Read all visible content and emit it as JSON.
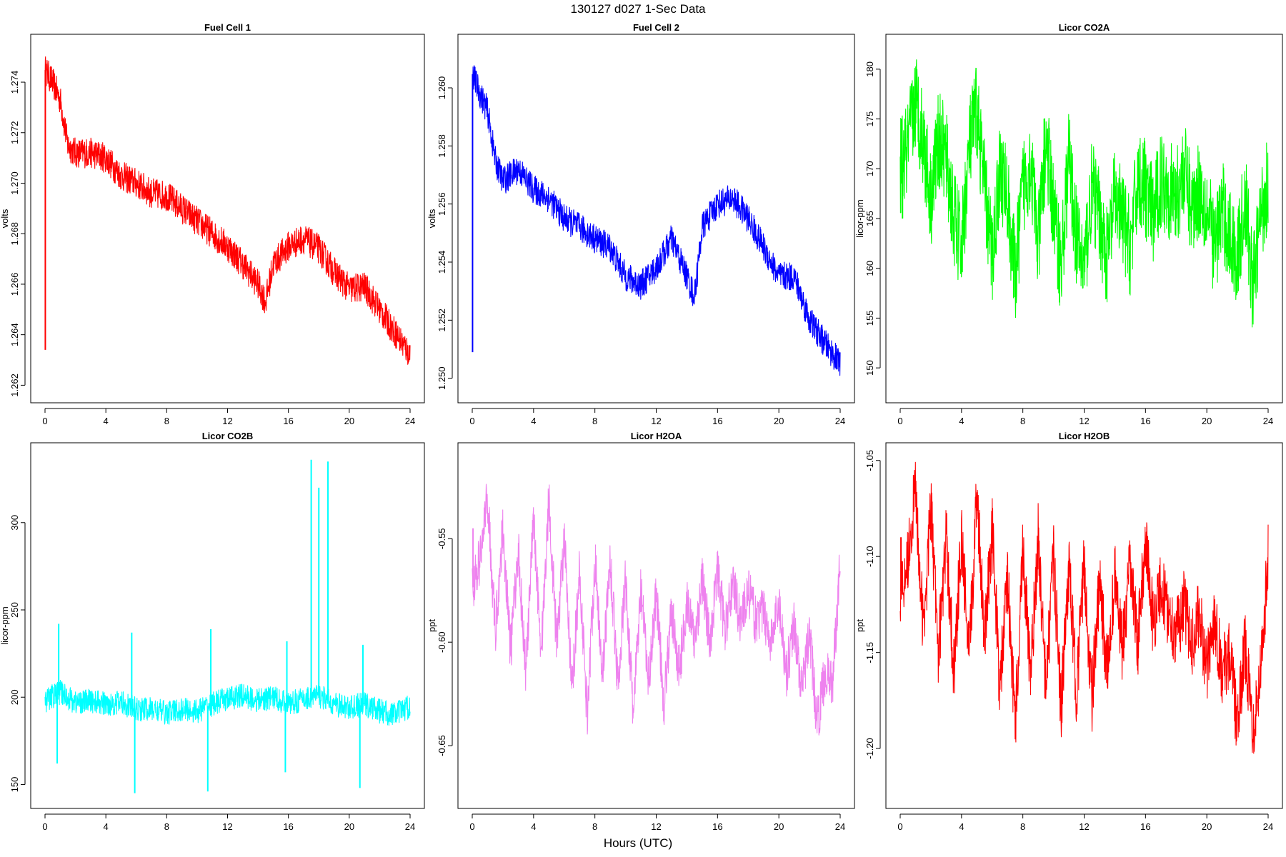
{
  "figure": {
    "title": "130127   d027   1-Sec Data",
    "xlabel": "Hours (UTC)"
  },
  "chart_data": [
    {
      "type": "line",
      "title": "Fuel Cell 1",
      "ylabel": "volts",
      "color": "#ff0000",
      "xlim": [
        0,
        24
      ],
      "ylim": [
        1.2617,
        1.2755
      ],
      "xticks": [
        0,
        4,
        8,
        12,
        16,
        20,
        24
      ],
      "xtick_labels": [
        "0",
        "4",
        "8",
        "12",
        "16",
        "20",
        "24"
      ],
      "yticks": [
        1.262,
        1.264,
        1.266,
        1.268,
        1.27,
        1.272,
        1.274
      ],
      "ytick_labels": [
        "1.262",
        "1.264",
        "1.266",
        "1.268",
        "1.270",
        "1.272",
        "1.274"
      ],
      "x": [
        0,
        0.5,
        1,
        1.5,
        2,
        3,
        4,
        5,
        6,
        7,
        8,
        9,
        10,
        11,
        12,
        13,
        14,
        14.5,
        15,
        16,
        17,
        18,
        19,
        20,
        21,
        22,
        23,
        24
      ],
      "y": [
        1.2745,
        1.274,
        1.2733,
        1.2715,
        1.2712,
        1.2712,
        1.271,
        1.2703,
        1.27,
        1.2696,
        1.2695,
        1.269,
        1.2685,
        1.268,
        1.2675,
        1.2668,
        1.266,
        1.2653,
        1.2668,
        1.2675,
        1.2678,
        1.2674,
        1.2665,
        1.2658,
        1.2659,
        1.265,
        1.2641,
        1.2632
      ],
      "noise": 0.0006,
      "spikes": [
        {
          "x": 0.02,
          "y": 1.2634
        }
      ]
    },
    {
      "type": "line",
      "title": "Fuel Cell 2",
      "ylabel": "volts",
      "color": "#0000ff",
      "xlim": [
        0,
        24
      ],
      "ylim": [
        1.2495,
        1.2615
      ],
      "xticks": [
        0,
        4,
        8,
        12,
        16,
        20,
        24
      ],
      "xtick_labels": [
        "0",
        "4",
        "8",
        "12",
        "16",
        "20",
        "24"
      ],
      "yticks": [
        1.25,
        1.252,
        1.254,
        1.256,
        1.258,
        1.26
      ],
      "ytick_labels": [
        "1.250",
        "1.252",
        "1.254",
        "1.256",
        "1.258",
        "1.260"
      ],
      "x": [
        0,
        0.5,
        1,
        1.5,
        2,
        3,
        4,
        5,
        6,
        7,
        8,
        9,
        10,
        11,
        12,
        13,
        14,
        14.5,
        15,
        16,
        17,
        18,
        19,
        20,
        21,
        22,
        23,
        24
      ],
      "y": [
        1.2605,
        1.2598,
        1.2592,
        1.2575,
        1.2568,
        1.2572,
        1.2565,
        1.2562,
        1.2555,
        1.2552,
        1.2548,
        1.2545,
        1.2535,
        1.2532,
        1.2538,
        1.2548,
        1.2535,
        1.2528,
        1.2552,
        1.256,
        1.2562,
        1.2555,
        1.2545,
        1.2535,
        1.2535,
        1.252,
        1.2512,
        1.2505
      ],
      "noise": 0.0005,
      "spikes": [
        {
          "x": 0.02,
          "y": 1.2509
        }
      ]
    },
    {
      "type": "line",
      "title": "Licor CO2A",
      "ylabel": "licor-ppm",
      "color": "#00ff00",
      "xlim": [
        0,
        24
      ],
      "ylim": [
        147.5,
        182.5
      ],
      "xticks": [
        0,
        4,
        8,
        12,
        16,
        20,
        24
      ],
      "xtick_labels": [
        "0",
        "4",
        "8",
        "12",
        "16",
        "20",
        "24"
      ],
      "yticks": [
        150,
        155,
        160,
        165,
        170,
        175,
        180
      ],
      "ytick_labels": [
        "150",
        "155",
        "160",
        "165",
        "170",
        "175",
        "180"
      ],
      "x": [
        0,
        0.5,
        1,
        1.5,
        2,
        2.5,
        3,
        3.5,
        4,
        4.5,
        5,
        5.5,
        6,
        6.5,
        7,
        7.5,
        8,
        8.5,
        9,
        9.5,
        10,
        10.5,
        11,
        11.5,
        12,
        12.5,
        13,
        13.5,
        14,
        14.5,
        15,
        15.5,
        16,
        16.5,
        17,
        17.5,
        18,
        18.5,
        19,
        19.5,
        20,
        20.5,
        21,
        21.5,
        22,
        22.5,
        23,
        23.5,
        24
      ],
      "y": [
        170,
        172,
        177,
        173,
        167,
        173,
        171,
        165,
        162,
        172,
        176,
        168,
        161,
        170,
        167,
        159,
        168,
        171,
        162,
        173,
        166,
        160,
        171,
        163,
        160,
        168,
        165,
        161,
        167,
        165,
        162,
        169,
        168,
        165,
        169,
        168,
        167,
        170,
        166,
        168,
        166,
        162,
        166,
        163,
        161,
        167,
        158,
        165,
        169
      ],
      "noise": 5,
      "spikes": [
        {
          "x": 0.15,
          "y": 165
        }
      ]
    },
    {
      "type": "line",
      "title": "Licor CO2B",
      "ylabel": "licor-ppm",
      "color": "#00ffff",
      "xlim": [
        0,
        24
      ],
      "ylim": [
        142,
        340
      ],
      "xticks": [
        0,
        4,
        8,
        12,
        16,
        20,
        24
      ],
      "xtick_labels": [
        "0",
        "4",
        "8",
        "12",
        "16",
        "20",
        "24"
      ],
      "yticks": [
        150,
        200,
        250,
        300
      ],
      "ytick_labels": [
        "150",
        "200",
        "250",
        "300"
      ],
      "x": [
        0,
        1,
        2,
        3,
        4,
        5,
        6,
        7,
        8,
        9,
        10,
        11,
        12,
        13,
        14,
        15,
        16,
        17,
        18,
        19,
        20,
        21,
        22,
        23,
        24
      ],
      "y": [
        198,
        203,
        197,
        198,
        196,
        197,
        193,
        193,
        191,
        193,
        192,
        196,
        199,
        201,
        198,
        200,
        196,
        199,
        201,
        196,
        194,
        196,
        192,
        190,
        195
      ],
      "noise": 7,
      "spikes": [
        {
          "x": 0.8,
          "y": 162
        },
        {
          "x": 0.9,
          "y": 242
        },
        {
          "x": 5.7,
          "y": 237
        },
        {
          "x": 5.9,
          "y": 145
        },
        {
          "x": 10.7,
          "y": 146
        },
        {
          "x": 10.9,
          "y": 239
        },
        {
          "x": 15.8,
          "y": 157
        },
        {
          "x": 15.9,
          "y": 232
        },
        {
          "x": 17.5,
          "y": 336
        },
        {
          "x": 18.0,
          "y": 320
        },
        {
          "x": 18.6,
          "y": 335
        },
        {
          "x": 20.7,
          "y": 148
        },
        {
          "x": 20.9,
          "y": 230
        }
      ]
    },
    {
      "type": "line",
      "title": "Licor H2OA",
      "ylabel": "ppt",
      "color": "#ee82ee",
      "xlim": [
        0,
        24
      ],
      "ylim": [
        -0.6755,
        -0.5085
      ],
      "xticks": [
        0,
        4,
        8,
        12,
        16,
        20,
        24
      ],
      "xtick_labels": [
        "0",
        "4",
        "8",
        "12",
        "16",
        "20",
        "24"
      ],
      "yticks": [
        -0.65,
        -0.6,
        -0.55
      ],
      "ytick_labels": [
        "-0.65",
        "-0.60",
        "-0.55"
      ],
      "x": [
        0,
        0.5,
        1,
        1.5,
        2,
        2.5,
        3,
        3.5,
        4,
        4.5,
        5,
        5.5,
        6,
        6.5,
        7,
        7.5,
        8,
        8.5,
        9,
        9.5,
        10,
        10.5,
        11,
        11.5,
        12,
        12.5,
        13,
        13.5,
        14,
        14.5,
        15,
        15.5,
        16,
        16.5,
        17,
        17.5,
        18,
        18.5,
        19,
        19.5,
        20,
        20.5,
        21,
        21.5,
        22,
        22.5,
        23,
        23.5,
        24
      ],
      "y": [
        -0.575,
        -0.56,
        -0.53,
        -0.595,
        -0.545,
        -0.605,
        -0.555,
        -0.615,
        -0.54,
        -0.605,
        -0.53,
        -0.6,
        -0.55,
        -0.625,
        -0.565,
        -0.635,
        -0.56,
        -0.615,
        -0.56,
        -0.62,
        -0.57,
        -0.635,
        -0.575,
        -0.62,
        -0.575,
        -0.63,
        -0.585,
        -0.615,
        -0.58,
        -0.6,
        -0.57,
        -0.6,
        -0.565,
        -0.595,
        -0.57,
        -0.59,
        -0.575,
        -0.59,
        -0.585,
        -0.6,
        -0.58,
        -0.615,
        -0.59,
        -0.625,
        -0.595,
        -0.64,
        -0.615,
        -0.62,
        -0.56
      ],
      "noise": 0.012,
      "spikes": [
        {
          "x": 0.05,
          "y": -0.545
        }
      ]
    },
    {
      "type": "line",
      "title": "Licor H2OB",
      "ylabel": "ppt",
      "color": "#ff0000",
      "xlim": [
        0,
        24
      ],
      "ylim": [
        -1.226,
        -1.046
      ],
      "xticks": [
        0,
        4,
        8,
        12,
        16,
        20,
        24
      ],
      "xtick_labels": [
        "0",
        "4",
        "8",
        "12",
        "16",
        "20",
        "24"
      ],
      "yticks": [
        -1.2,
        -1.15,
        -1.1,
        -1.05
      ],
      "ytick_labels": [
        "-1.20",
        "-1.15",
        "-1.10",
        "-1.05"
      ],
      "x": [
        0,
        0.5,
        1,
        1.5,
        2,
        2.5,
        3,
        3.5,
        4,
        4.5,
        5,
        5.5,
        6,
        6.5,
        7,
        7.5,
        8,
        8.5,
        9,
        9.5,
        10,
        10.5,
        11,
        11.5,
        12,
        12.5,
        13,
        13.5,
        14,
        14.5,
        15,
        15.5,
        16,
        16.5,
        17,
        17.5,
        18,
        18.5,
        19,
        19.5,
        20,
        20.5,
        21,
        21.5,
        22,
        22.5,
        23,
        23.5,
        24
      ],
      "y": [
        -1.12,
        -1.1,
        -1.065,
        -1.14,
        -1.075,
        -1.15,
        -1.09,
        -1.16,
        -1.09,
        -1.155,
        -1.065,
        -1.14,
        -1.085,
        -1.17,
        -1.11,
        -1.19,
        -1.095,
        -1.165,
        -1.09,
        -1.17,
        -1.1,
        -1.18,
        -1.105,
        -1.17,
        -1.105,
        -1.175,
        -1.115,
        -1.16,
        -1.11,
        -1.15,
        -1.105,
        -1.145,
        -1.09,
        -1.135,
        -1.115,
        -1.13,
        -1.14,
        -1.125,
        -1.145,
        -1.13,
        -1.16,
        -1.13,
        -1.16,
        -1.15,
        -1.19,
        -1.145,
        -1.19,
        -1.16,
        -1.1
      ],
      "noise": 0.018,
      "spikes": [
        {
          "x": 0.05,
          "y": -1.09
        }
      ]
    }
  ]
}
